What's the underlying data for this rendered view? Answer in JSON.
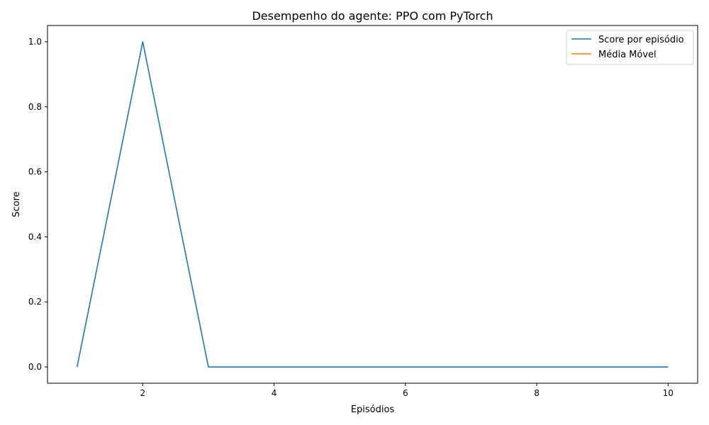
{
  "chart_data": {
    "type": "line",
    "title": "Desempenho do agente: PPO com PyTorch",
    "xlabel": "Episódios",
    "ylabel": "Score",
    "xlim": [
      0.55,
      10.45
    ],
    "ylim": [
      -0.05,
      1.05
    ],
    "x_ticks": [
      2,
      4,
      6,
      8,
      10
    ],
    "y_ticks": [
      0.0,
      0.2,
      0.4,
      0.6,
      0.8,
      1.0
    ],
    "x_tick_labels": [
      "2",
      "4",
      "6",
      "8",
      "10"
    ],
    "y_tick_labels": [
      "0.0",
      "0.2",
      "0.4",
      "0.6",
      "0.8",
      "1.0"
    ],
    "grid": false,
    "legend_position": "top-right",
    "series": [
      {
        "name": "Score por episódio",
        "color": "#1f77b4",
        "x": [
          1,
          2,
          3,
          4,
          5,
          6,
          7,
          8,
          9,
          10
        ],
        "y": [
          0,
          1,
          0,
          0,
          0,
          0,
          0,
          0,
          0,
          0
        ]
      },
      {
        "name": "Média Móvel",
        "color": "#ff7f0e",
        "x": [],
        "y": []
      }
    ]
  }
}
